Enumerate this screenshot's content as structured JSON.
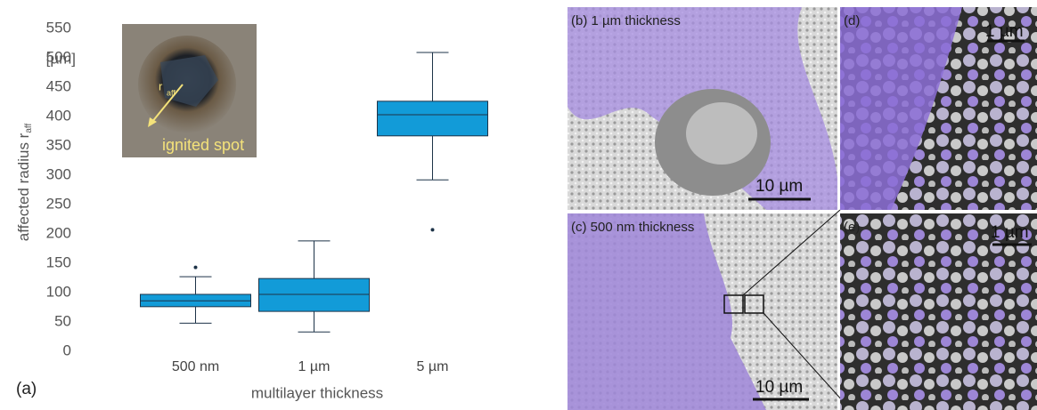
{
  "chart_data": {
    "type": "box",
    "panel_label": "(a)",
    "ylabel": "affected radius r",
    "ylabel_sub": "aff",
    "yunit": "[µm]",
    "xlabel": "multilayer thickness",
    "categories": [
      "500 nm",
      "1 µm",
      "5 µm"
    ],
    "boxes": [
      {
        "min": 48,
        "q1": 76,
        "median": 86,
        "q3": 97,
        "max": 127,
        "outliers": [
          143
        ]
      },
      {
        "min": 33,
        "q1": 68,
        "median": 97,
        "q3": 124,
        "max": 188,
        "outliers": []
      },
      {
        "min": 292,
        "q1": 367,
        "median": 403,
        "q3": 426,
        "max": 509,
        "outliers": [
          207
        ]
      }
    ],
    "color": "#129bd8",
    "edge_color": "#1d3348",
    "ylim": [
      0,
      550
    ],
    "yticks": [
      0,
      50,
      100,
      150,
      200,
      250,
      300,
      350,
      400,
      450,
      500,
      550
    ],
    "grid": false
  },
  "figure": {
    "inset_r": "r",
    "inset_r_sub": "aff",
    "inset_caption": "ignited spot",
    "panels": [
      {
        "label": "(b) 1 µm thickness",
        "scale": "10 µm"
      },
      {
        "label": "(d)",
        "scale": "1 µm"
      },
      {
        "label": "(c) 500 nm thickness",
        "scale": "10 µm"
      },
      {
        "label": "(e)",
        "scale": "1 µm"
      }
    ]
  }
}
